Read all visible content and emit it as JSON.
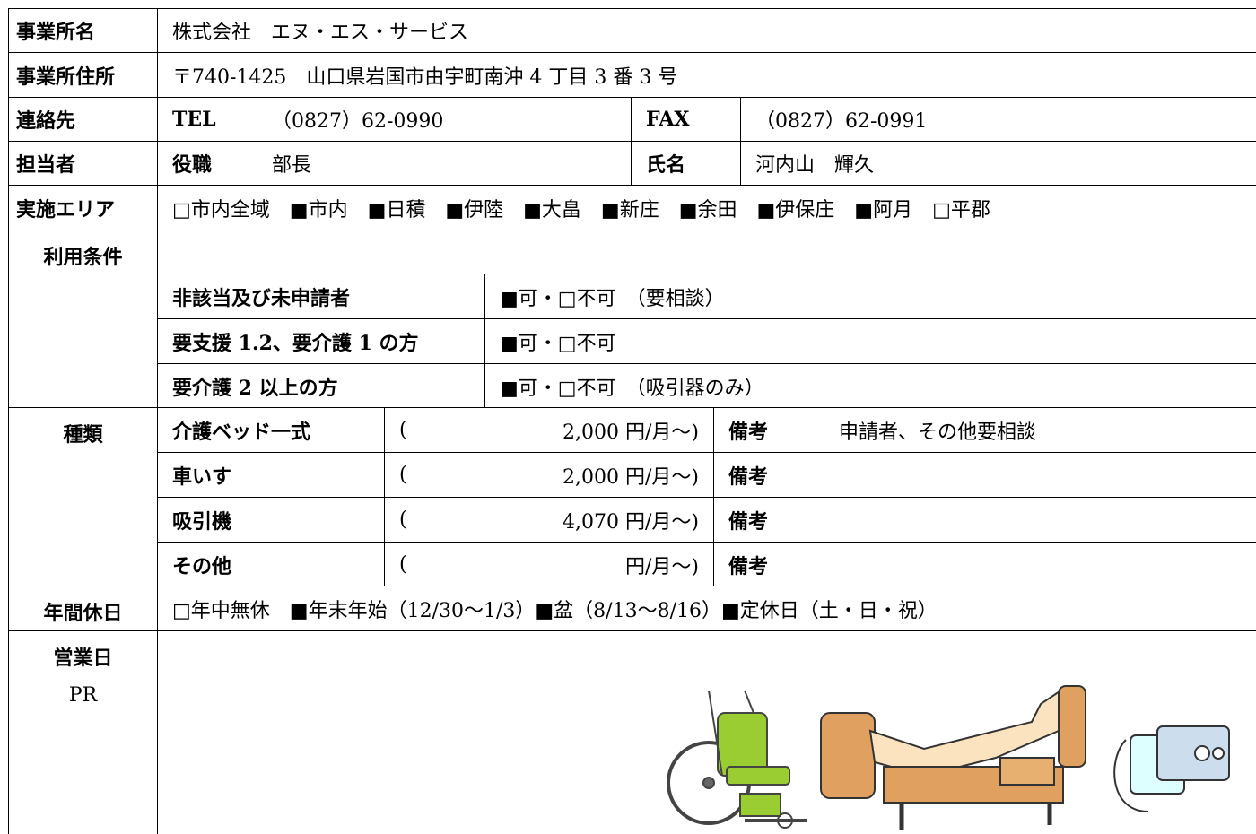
{
  "office": {
    "label": "事業所名",
    "value": "株式会社　エヌ・エス・サービス"
  },
  "address": {
    "label": "事業所住所",
    "value": "〒740-1425　山口県岩国市由宇町南沖 4 丁目 3 番 3 号"
  },
  "contact": {
    "label": "連絡先",
    "tel_label": "TEL",
    "tel": "（0827）62-0990",
    "fax_label": "FAX",
    "fax": "（0827）62-0991"
  },
  "person": {
    "label": "担当者",
    "position_label": "役職",
    "position": "部長",
    "name_label": "氏名",
    "name": "河内山　輝久"
  },
  "area": {
    "label": "実施エリア",
    "value": "□市内全域　■市内　■日積　■伊陸　■大畠　■新庄　■余田　■伊保庄　■阿月　□平郡"
  },
  "conditions": {
    "label": "利用条件",
    "rows": [
      {
        "label": "非該当及び未申請者",
        "value": "■可・□不可　（要相談）"
      },
      {
        "label": "要支援 1.2、要介護 1 の方",
        "value": "■可・□不可"
      },
      {
        "label": "要介護 2 以上の方",
        "value": "■可・□不可　（吸引器のみ）"
      }
    ]
  },
  "types": {
    "label": "種類",
    "rows": [
      {
        "name": "介護ベッド一式",
        "open": "(",
        "price": "2,000 円/月～)",
        "note_label": "備考",
        "note": "申請者、その他要相談"
      },
      {
        "name": "車いす",
        "open": "(",
        "price": "2,000 円/月～)",
        "note_label": "備考"
      },
      {
        "name": "吸引機",
        "open": "(",
        "price": "4,070 円/月～)",
        "note_label": "備考"
      },
      {
        "name": "その他",
        "open": "(",
        "price": "円/月～)",
        "note_label": "備考"
      }
    ]
  },
  "holidays": {
    "label": "年間休日",
    "value": "□年中無休　■年末年始（12/30～1/3）■盆（8/13～8/16）■定休日（土・日・祝）"
  },
  "business_days": {
    "label": "営業日"
  },
  "pr": {
    "label": "PR"
  }
}
